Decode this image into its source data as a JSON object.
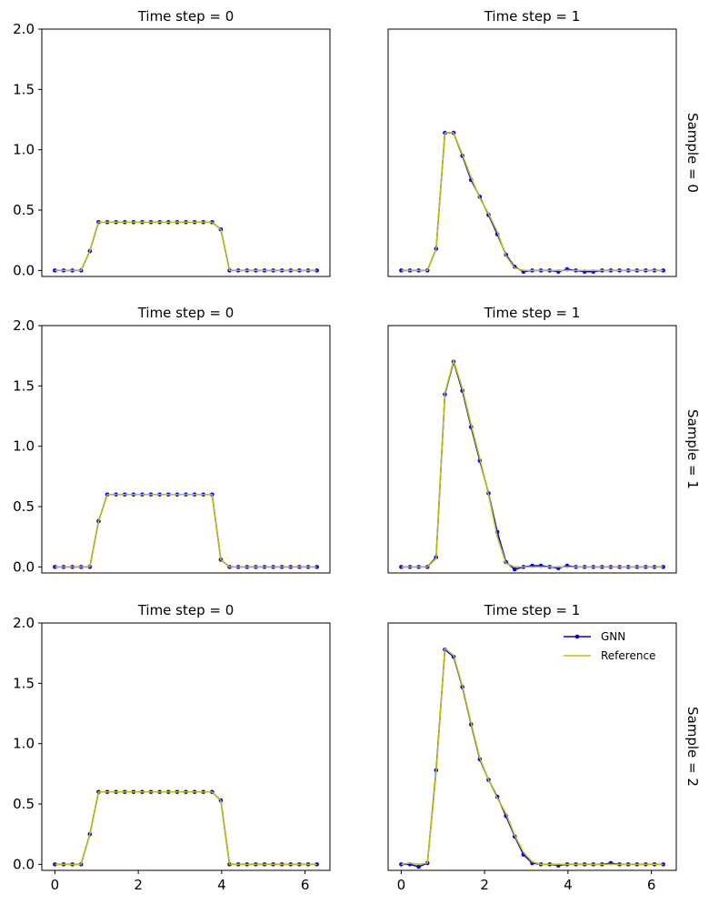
{
  "colors": {
    "gnn": "#0000ff",
    "reference": "#bfbf00",
    "axis": "#000000"
  },
  "chart_data": {
    "type": "line",
    "layout": "3 rows x 2 columns of line plots",
    "x": [
      0.0,
      0.2094,
      0.4189,
      0.6283,
      0.8378,
      1.0472,
      1.2566,
      1.4661,
      1.6755,
      1.885,
      2.0944,
      2.3038,
      2.5133,
      2.7227,
      2.9322,
      3.1416,
      3.351,
      3.5605,
      3.7699,
      3.9794,
      4.1888,
      4.3982,
      4.6077,
      4.8171,
      5.0265,
      5.236,
      5.4454,
      5.6549,
      5.8643,
      6.0737,
      6.2832
    ],
    "xlim": [
      -0.314,
      6.597
    ],
    "ylim": [
      -0.05,
      2.0
    ],
    "xticks": [
      0,
      2,
      4,
      6
    ],
    "yticks": [
      0.0,
      0.5,
      1.0,
      1.5,
      2.0
    ],
    "xtick_labels": [
      "0",
      "2",
      "4",
      "6"
    ],
    "ytick_labels": [
      "0.0",
      "0.5",
      "1.0",
      "1.5",
      "2.0"
    ],
    "legend": {
      "position": "top-right",
      "entries": [
        "GNN",
        "Reference"
      ]
    },
    "panels": [
      {
        "row": 0,
        "col": 0,
        "title": "Time step = 0",
        "row_label": "",
        "series": [
          {
            "name": "GNN",
            "values": [
              0,
              0,
              0,
              0,
              0.16,
              0.4,
              0.4,
              0.4,
              0.4,
              0.4,
              0.4,
              0.4,
              0.4,
              0.4,
              0.4,
              0.4,
              0.4,
              0.4,
              0.4,
              0.34,
              0,
              0,
              0,
              0,
              0,
              0,
              0,
              0,
              0,
              0,
              0
            ]
          },
          {
            "name": "Reference",
            "values": [
              0,
              0,
              0,
              0,
              0.16,
              0.4,
              0.4,
              0.4,
              0.4,
              0.4,
              0.4,
              0.4,
              0.4,
              0.4,
              0.4,
              0.4,
              0.4,
              0.4,
              0.4,
              0.34,
              0,
              0,
              0,
              0,
              0,
              0,
              0,
              0,
              0,
              0,
              0
            ]
          }
        ]
      },
      {
        "row": 0,
        "col": 1,
        "title": "Time step = 1",
        "row_label": "Sample = 0",
        "series": [
          {
            "name": "GNN",
            "values": [
              0,
              0,
              0,
              0,
              0.18,
              1.14,
              1.14,
              0.95,
              0.75,
              0.61,
              0.46,
              0.3,
              0.13,
              0.03,
              -0.01,
              0,
              0,
              0,
              -0.01,
              0.01,
              0,
              -0.01,
              -0.01,
              0,
              0,
              0,
              0,
              0,
              0,
              0,
              0
            ]
          },
          {
            "name": "Reference",
            "values": [
              0,
              0,
              0,
              0,
              0.18,
              1.14,
              1.14,
              0.96,
              0.77,
              0.6,
              0.47,
              0.32,
              0.12,
              0.02,
              0,
              0,
              0,
              0,
              0,
              0,
              0,
              0,
              0,
              0,
              0,
              0,
              0,
              0,
              0,
              0,
              0
            ]
          }
        ]
      },
      {
        "row": 1,
        "col": 0,
        "title": "Time step = 0",
        "row_label": "",
        "series": [
          {
            "name": "GNN",
            "values": [
              0,
              0,
              0,
              0,
              0,
              0.38,
              0.6,
              0.6,
              0.6,
              0.6,
              0.6,
              0.6,
              0.6,
              0.6,
              0.6,
              0.6,
              0.6,
              0.6,
              0.6,
              0.06,
              0,
              0,
              0,
              0,
              0,
              0,
              0,
              0,
              0,
              0,
              0
            ]
          },
          {
            "name": "Reference",
            "values": [
              0,
              0,
              0,
              0,
              0,
              0.38,
              0.6,
              0.6,
              0.6,
              0.6,
              0.6,
              0.6,
              0.6,
              0.6,
              0.6,
              0.6,
              0.6,
              0.6,
              0.6,
              0.06,
              0,
              0,
              0,
              0,
              0,
              0,
              0,
              0,
              0,
              0,
              0
            ]
          }
        ]
      },
      {
        "row": 1,
        "col": 1,
        "title": "Time step = 1",
        "row_label": "Sample = 1",
        "series": [
          {
            "name": "GNN",
            "values": [
              0,
              0,
              0,
              0,
              0.08,
              1.43,
              1.7,
              1.46,
              1.16,
              0.88,
              0.61,
              0.29,
              0.04,
              -0.02,
              0,
              0.01,
              0.01,
              0,
              -0.01,
              0.01,
              0,
              0,
              0,
              0,
              0,
              0,
              0,
              0,
              0,
              0,
              0
            ]
          },
          {
            "name": "Reference",
            "values": [
              0,
              0,
              0,
              0,
              0.07,
              1.44,
              1.71,
              1.48,
              1.18,
              0.9,
              0.6,
              0.25,
              0.03,
              0,
              0,
              0,
              0,
              0,
              0,
              0,
              0,
              0,
              0,
              0,
              0,
              0,
              0,
              0,
              0,
              0,
              0
            ]
          }
        ]
      },
      {
        "row": 2,
        "col": 0,
        "title": "Time step = 0",
        "row_label": "",
        "series": [
          {
            "name": "GNN",
            "values": [
              0,
              0,
              0,
              0,
              0.25,
              0.6,
              0.6,
              0.6,
              0.6,
              0.6,
              0.6,
              0.6,
              0.6,
              0.6,
              0.6,
              0.6,
              0.6,
              0.6,
              0.6,
              0.53,
              0,
              0,
              0,
              0,
              0,
              0,
              0,
              0,
              0,
              0,
              0
            ]
          },
          {
            "name": "Reference",
            "values": [
              0,
              0,
              0,
              0,
              0.25,
              0.6,
              0.6,
              0.6,
              0.6,
              0.6,
              0.6,
              0.6,
              0.6,
              0.6,
              0.6,
              0.6,
              0.6,
              0.6,
              0.6,
              0.53,
              0,
              0,
              0,
              0,
              0,
              0,
              0,
              0,
              0,
              0,
              0
            ]
          }
        ]
      },
      {
        "row": 2,
        "col": 1,
        "title": "Time step = 1",
        "row_label": "Sample = 2",
        "series": [
          {
            "name": "GNN",
            "values": [
              0,
              0,
              -0.02,
              0.01,
              0.78,
              1.78,
              1.72,
              1.47,
              1.16,
              0.87,
              0.7,
              0.56,
              0.4,
              0.23,
              0.08,
              0.01,
              0,
              0,
              -0.01,
              0,
              0,
              0,
              0,
              0,
              0.01,
              0,
              0,
              0,
              0,
              0,
              0
            ]
          },
          {
            "name": "Reference",
            "values": [
              0,
              0.01,
              0,
              0.01,
              0.76,
              1.79,
              1.73,
              1.48,
              1.17,
              0.88,
              0.7,
              0.55,
              0.42,
              0.24,
              0.1,
              0.02,
              0,
              0,
              0,
              0,
              0,
              0,
              0,
              0,
              0,
              0,
              0,
              0,
              0,
              0,
              0
            ]
          }
        ]
      }
    ]
  }
}
